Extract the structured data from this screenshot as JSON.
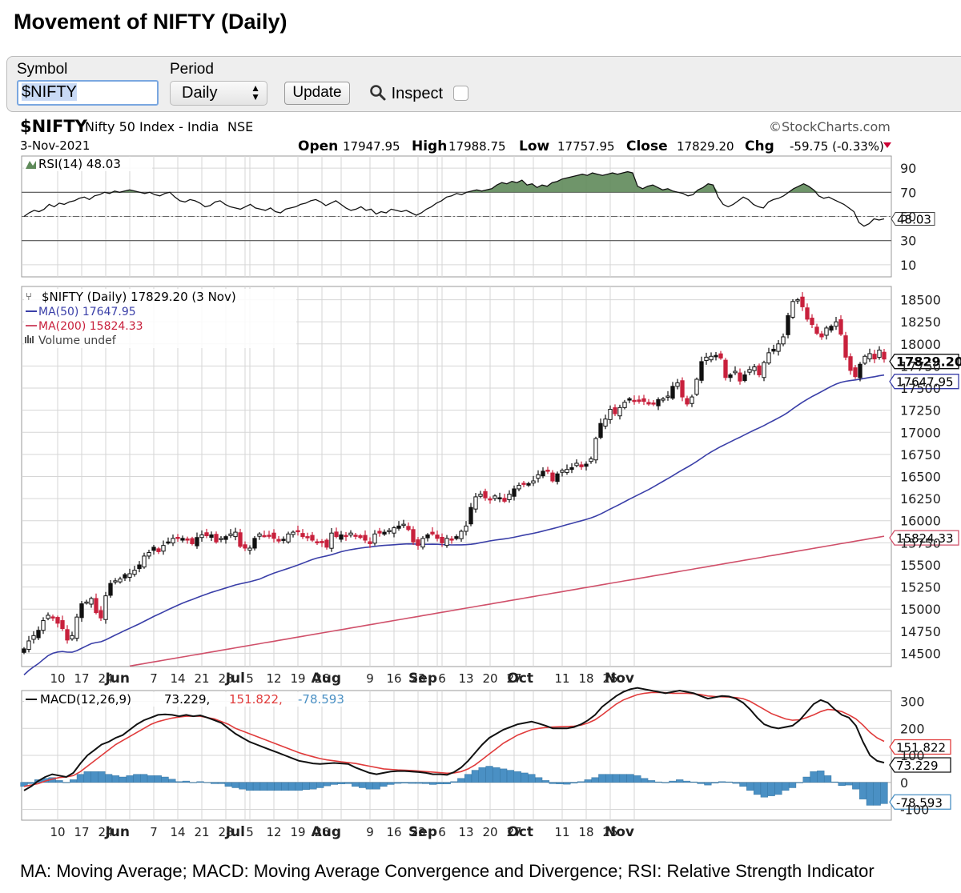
{
  "page_title": "Movement of NIFTY (Daily)",
  "form": {
    "symbol_label": "Symbol",
    "symbol_value": "$NIFTY",
    "period_label": "Period",
    "period_value": "Daily",
    "update_label": "Update",
    "inspect_label": "Inspect"
  },
  "footnote": "MA: Moving Average; MACD: Moving Average Convergence and Divergence; RSI: Relative Strength Indicator",
  "chart_data": {
    "type": "candlestick",
    "symbol": "$NIFTY",
    "name": "Nifty 50 Index - India",
    "exchange": "NSE",
    "watermark": "©StockCharts.com",
    "date": "3-Nov-2021",
    "ohlc_labels": [
      "Open",
      "High",
      "Low",
      "Close",
      "Chg"
    ],
    "ohlc_values": [
      "17947.95",
      "17988.75",
      "17757.95",
      "17829.20",
      "-59.75 (-0.33%)"
    ],
    "rsi": {
      "label": "RSI(14) 48.03",
      "value": 48.03,
      "value_label": "48.03",
      "ylim": [
        0,
        100
      ],
      "ticks": [
        90,
        70,
        50,
        30,
        10
      ],
      "tick_labels": [
        "90",
        "70",
        "50",
        "30",
        "10"
      ],
      "values": [
        50,
        53,
        55,
        54,
        56,
        60,
        58,
        61,
        60,
        62,
        63,
        65,
        66,
        64,
        67,
        68,
        70,
        69,
        71,
        70,
        71,
        72,
        71,
        70,
        69,
        70,
        68,
        67,
        69,
        70,
        66,
        63,
        62,
        64,
        63,
        61,
        58,
        59,
        62,
        63,
        60,
        58,
        57,
        56,
        58,
        60,
        57,
        56,
        55,
        57,
        54,
        53,
        56,
        57,
        58,
        60,
        61,
        63,
        64,
        62,
        59,
        61,
        63,
        60,
        57,
        55,
        56,
        58,
        55,
        56,
        52,
        54,
        53,
        56,
        55,
        54,
        55,
        53,
        51,
        53,
        56,
        58,
        61,
        63,
        66,
        67,
        69,
        68,
        70,
        71,
        72,
        71,
        72,
        73,
        76,
        78,
        77,
        79,
        78,
        80,
        76,
        77,
        74,
        76,
        75,
        78,
        79,
        81,
        82,
        83,
        84,
        85,
        84,
        86,
        85,
        84,
        85,
        86,
        85,
        86,
        87,
        86,
        75,
        73,
        75,
        76,
        74,
        72,
        73,
        71,
        70,
        69,
        67,
        68,
        72,
        74,
        77,
        76,
        66,
        60,
        58,
        60,
        63,
        66,
        64,
        60,
        58,
        57,
        62,
        64,
        65,
        67,
        70,
        73,
        75,
        77,
        75,
        72,
        67,
        65,
        66,
        64,
        62,
        60,
        57,
        54,
        45,
        42,
        44,
        48,
        47,
        48
      ]
    },
    "price": {
      "legend": [
        "$NIFTY (Daily) 17829.20 (3 Nov)",
        "MA(50) 17647.95",
        "MA(200) 15824.33",
        "Volume undef"
      ],
      "ylim": [
        14350,
        18650
      ],
      "ticks": [
        14500,
        14750,
        15000,
        15250,
        15500,
        15750,
        16000,
        16250,
        16500,
        16750,
        17000,
        17250,
        17500,
        17750,
        18000,
        18250,
        18500
      ],
      "tick_labels": [
        "14500",
        "14750",
        "15000",
        "15250",
        "15500",
        "15750",
        "16000",
        "16250",
        "16500",
        "16750",
        "17000",
        "17250",
        "17500",
        "17750",
        "18000",
        "18250",
        "18500"
      ],
      "last_close": 17829.2,
      "last_close_label": "17829.20",
      "ma50_last": 17647.95,
      "ma50_label": "17647.95",
      "ma200_last": 15824.33,
      "ma200_label": "15824.33",
      "close": [
        14550,
        14640,
        14700,
        14760,
        14870,
        14930,
        14900,
        14840,
        14780,
        14650,
        14700,
        14910,
        15060,
        15080,
        15120,
        14960,
        14900,
        15150,
        15290,
        15320,
        15340,
        15390,
        15400,
        15440,
        15500,
        15600,
        15640,
        15700,
        15650,
        15720,
        15760,
        15800,
        15810,
        15800,
        15780,
        15740,
        15810,
        15840,
        15830,
        15840,
        15760,
        15800,
        15820,
        15850,
        15870,
        15710,
        15690,
        15690,
        15800,
        15850,
        15830,
        15830,
        15800,
        15770,
        15790,
        15850,
        15870,
        15880,
        15820,
        15810,
        15780,
        15760,
        15750,
        15700,
        15860,
        15820,
        15840,
        15820,
        15860,
        15830,
        15810,
        15780,
        15740,
        15850,
        15860,
        15870,
        15890,
        15920,
        15940,
        15960,
        15900,
        15760,
        15720,
        15800,
        15840,
        15850,
        15800,
        15750,
        15800,
        15780,
        15820,
        15880,
        15940,
        16150,
        16270,
        16300,
        16260,
        16240,
        16280,
        16260,
        16220,
        16300,
        16360,
        16400,
        16420,
        16420,
        16450,
        16520,
        16560,
        16570,
        16450,
        16530,
        16570,
        16580,
        16600,
        16650,
        16610,
        16640,
        16700,
        16930,
        17100,
        17150,
        17260,
        17210,
        17280,
        17340,
        17380,
        17360,
        17350,
        17350,
        17320,
        17330,
        17370,
        17380,
        17410,
        17520,
        17560,
        17400,
        17320,
        17400,
        17600,
        17800,
        17850,
        17860,
        17870,
        17840,
        17620,
        17650,
        17690,
        17580,
        17650,
        17710,
        17740,
        17650,
        17790,
        17900,
        17940,
        18000,
        18080,
        18320,
        18480,
        18500,
        18420,
        18280,
        18220,
        18120,
        18080,
        18180,
        18200,
        18250,
        18110,
        17850,
        17700,
        17630,
        17770,
        17860,
        17890,
        17830,
        17930,
        17829
      ]
    },
    "x_ticks": [
      "10",
      "17",
      "24",
      "Jun",
      "7",
      "14",
      "21",
      "28",
      "Jul",
      "5",
      "12",
      "19",
      "26",
      "Aug",
      "9",
      "16",
      "23",
      "Sep",
      "6",
      "13",
      "20",
      "27",
      "Oct",
      "11",
      "18",
      "25",
      "Nov"
    ],
    "macd": {
      "label": "MACD(12,26,9)",
      "values_labels": [
        "73.229,",
        "151.822,",
        "-78.593"
      ],
      "macd_value": 73.229,
      "signal_value": 151.822,
      "hist_value": -78.593,
      "ylim": [
        -140,
        340
      ],
      "ticks": [
        300,
        200,
        100,
        0,
        -100
      ],
      "tick_labels": [
        "300",
        "200",
        "100",
        "0",
        "-100"
      ],
      "macd": [
        -30,
        -15,
        5,
        20,
        30,
        25,
        20,
        35,
        70,
        100,
        120,
        140,
        150,
        165,
        175,
        195,
        215,
        230,
        240,
        250,
        252,
        250,
        245,
        250,
        245,
        248,
        240,
        230,
        220,
        200,
        180,
        165,
        150,
        140,
        130,
        120,
        110,
        100,
        90,
        80,
        75,
        70,
        68,
        70,
        72,
        70,
        68,
        55,
        45,
        35,
        30,
        35,
        40,
        42,
        42,
        40,
        38,
        35,
        30,
        30,
        28,
        38,
        55,
        80,
        110,
        140,
        165,
        180,
        195,
        205,
        215,
        220,
        225,
        218,
        210,
        200,
        200,
        200,
        205,
        215,
        230,
        250,
        280,
        300,
        320,
        335,
        345,
        350,
        345,
        340,
        335,
        330,
        335,
        340,
        335,
        330,
        320,
        310,
        315,
        320,
        318,
        310,
        295,
        270,
        240,
        215,
        205,
        200,
        205,
        210,
        230,
        260,
        290,
        305,
        295,
        270,
        250,
        240,
        210,
        150,
        100,
        80,
        73
      ],
      "signal": [
        -15,
        -10,
        -5,
        5,
        12,
        18,
        20,
        25,
        40,
        60,
        80,
        100,
        120,
        140,
        155,
        170,
        185,
        200,
        215,
        225,
        232,
        238,
        242,
        245,
        245,
        245,
        240,
        235,
        225,
        215,
        200,
        190,
        180,
        170,
        160,
        150,
        140,
        130,
        120,
        110,
        102,
        95,
        88,
        83,
        80,
        76,
        73,
        70,
        65,
        60,
        55,
        50,
        48,
        46,
        45,
        44,
        42,
        40,
        38,
        36,
        34,
        35,
        40,
        50,
        65,
        85,
        105,
        125,
        145,
        160,
        175,
        185,
        195,
        200,
        203,
        205,
        206,
        207,
        208,
        212,
        220,
        232,
        250,
        270,
        290,
        305,
        315,
        325,
        330,
        333,
        333,
        332,
        330,
        330,
        330,
        328,
        325,
        320,
        318,
        317,
        316,
        314,
        310,
        300,
        285,
        270,
        255,
        245,
        235,
        230,
        232,
        240,
        250,
        262,
        270,
        268,
        262,
        250,
        235,
        212,
        185,
        165,
        152
      ]
    }
  }
}
